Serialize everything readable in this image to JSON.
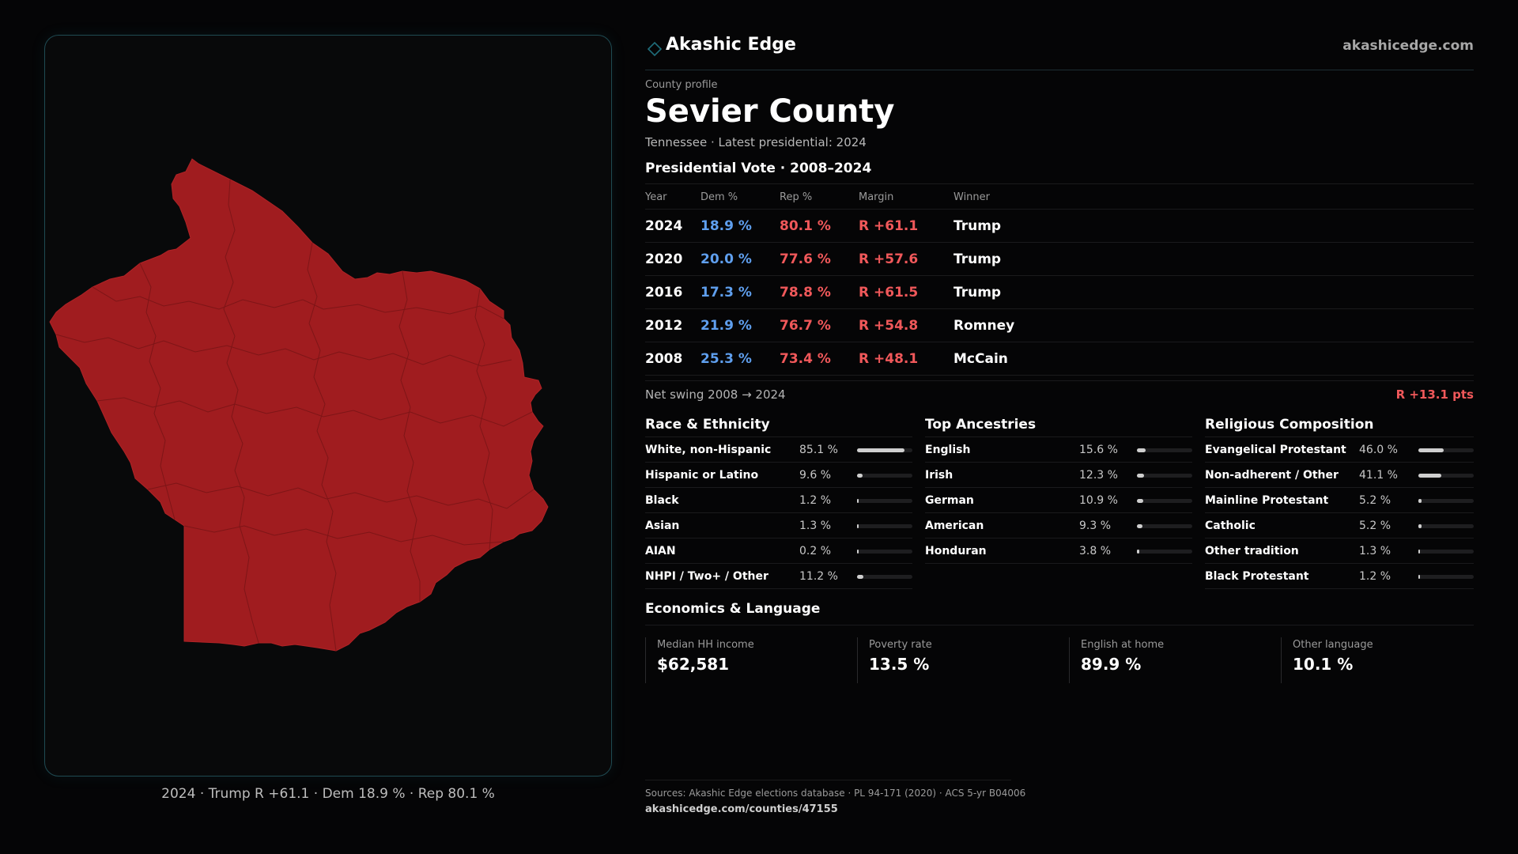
{
  "brand": {
    "name": "Akashic Edge",
    "url": "akashicedge.com",
    "icon": "diamond-icon",
    "accent": "#1f6d7a"
  },
  "profile": {
    "eyebrow": "County profile",
    "title": "Sevier County",
    "subtitle": "Tennessee · Latest presidential: 2024"
  },
  "map": {
    "caption": "2024 · Trump R +61.1 · Dem 18.9 % · Rep 80.1 %",
    "fill_color": "#a01c1f",
    "stroke_color": "#7a1416"
  },
  "vote": {
    "title": "Presidential Vote · 2008–2024",
    "headers": {
      "year": "Year",
      "dem": "Dem %",
      "rep": "Rep %",
      "margin": "Margin",
      "winner": "Winner"
    },
    "rows": [
      {
        "year": "2024",
        "dem": "18.9 %",
        "rep": "80.1 %",
        "margin": "R +61.1",
        "winner": "Trump"
      },
      {
        "year": "2020",
        "dem": "20.0 %",
        "rep": "77.6 %",
        "margin": "R +57.6",
        "winner": "Trump"
      },
      {
        "year": "2016",
        "dem": "17.3 %",
        "rep": "78.8 %",
        "margin": "R +61.5",
        "winner": "Trump"
      },
      {
        "year": "2012",
        "dem": "21.9 %",
        "rep": "76.7 %",
        "margin": "R +54.8",
        "winner": "Romney"
      },
      {
        "year": "2008",
        "dem": "25.3 %",
        "rep": "73.4 %",
        "margin": "R +48.1",
        "winner": "McCain"
      }
    ],
    "dem_color": "#5f9fee",
    "rep_color": "#f0585a"
  },
  "swing": {
    "label": "Net swing 2008 → 2024",
    "value": "R +13.1 pts"
  },
  "race": {
    "title": "Race & Ethnicity",
    "items": [
      {
        "label": "White, non-Hispanic",
        "value": "85.1 %",
        "share": 0.851
      },
      {
        "label": "Hispanic or Latino",
        "value": "9.6 %",
        "share": 0.096
      },
      {
        "label": "Black",
        "value": "1.2 %",
        "share": 0.012
      },
      {
        "label": "Asian",
        "value": "1.3 %",
        "share": 0.013
      },
      {
        "label": "AIAN",
        "value": "0.2 %",
        "share": 0.002
      },
      {
        "label": "NHPI / Two+ / Other",
        "value": "11.2 %",
        "share": 0.112
      }
    ]
  },
  "ancestry": {
    "title": "Top Ancestries",
    "items": [
      {
        "label": "English",
        "value": "15.6 %",
        "share": 0.156
      },
      {
        "label": "Irish",
        "value": "12.3 %",
        "share": 0.123
      },
      {
        "label": "German",
        "value": "10.9 %",
        "share": 0.109
      },
      {
        "label": "American",
        "value": "9.3 %",
        "share": 0.093
      },
      {
        "label": "Honduran",
        "value": "3.8 %",
        "share": 0.038
      }
    ]
  },
  "religion": {
    "title": "Religious Composition",
    "items": [
      {
        "label": "Evangelical Protestant",
        "value": "46.0 %",
        "share": 0.46
      },
      {
        "label": "Non-adherent / Other",
        "value": "41.1 %",
        "share": 0.411
      },
      {
        "label": "Mainline Protestant",
        "value": "5.2 %",
        "share": 0.052
      },
      {
        "label": "Catholic",
        "value": "5.2 %",
        "share": 0.052
      },
      {
        "label": "Other tradition",
        "value": "1.3 %",
        "share": 0.013
      },
      {
        "label": "Black Protestant",
        "value": "1.2 %",
        "share": 0.012
      }
    ]
  },
  "economics": {
    "title": "Economics & Language",
    "cards": [
      {
        "label": "Median HH income",
        "value": "$62,581"
      },
      {
        "label": "Poverty rate",
        "value": "13.5 %"
      },
      {
        "label": "English at home",
        "value": "89.9 %"
      },
      {
        "label": "Other language",
        "value": "10.1 %"
      }
    ]
  },
  "footer": {
    "sources": "Sources: Akashic Edge elections database · PL 94-171 (2020) · ACS 5-yr B04006",
    "url": "akashicedge.com/counties/47155"
  }
}
